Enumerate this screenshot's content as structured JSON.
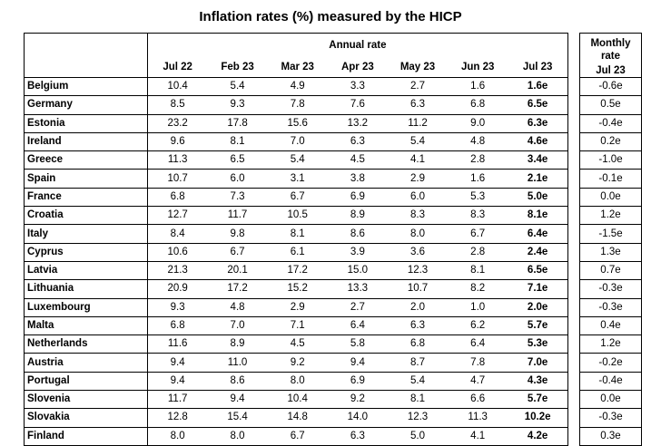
{
  "title": "Inflation rates (%) measured by the HICP",
  "annual_header": "Annual rate",
  "monthly_header_line1": "Monthly",
  "monthly_header_line2": "rate",
  "annual_columns": [
    "Jul 22",
    "Feb 23",
    "Mar 23",
    "Apr 23",
    "May 23",
    "Jun 23",
    "Jul 23"
  ],
  "monthly_column": "Jul 23",
  "rows": [
    {
      "country": "Belgium",
      "annual": [
        "10.4",
        "5.4",
        "4.9",
        "3.3",
        "2.7",
        "1.6",
        "1.6e"
      ],
      "monthly": "-0.6e"
    },
    {
      "country": "Germany",
      "annual": [
        "8.5",
        "9.3",
        "7.8",
        "7.6",
        "6.3",
        "6.8",
        "6.5e"
      ],
      "monthly": "0.5e"
    },
    {
      "country": "Estonia",
      "annual": [
        "23.2",
        "17.8",
        "15.6",
        "13.2",
        "11.2",
        "9.0",
        "6.3e"
      ],
      "monthly": "-0.4e"
    },
    {
      "country": "Ireland",
      "annual": [
        "9.6",
        "8.1",
        "7.0",
        "6.3",
        "5.4",
        "4.8",
        "4.6e"
      ],
      "monthly": "0.2e"
    },
    {
      "country": "Greece",
      "annual": [
        "11.3",
        "6.5",
        "5.4",
        "4.5",
        "4.1",
        "2.8",
        "3.4e"
      ],
      "monthly": "-1.0e"
    },
    {
      "country": "Spain",
      "annual": [
        "10.7",
        "6.0",
        "3.1",
        "3.8",
        "2.9",
        "1.6",
        "2.1e"
      ],
      "monthly": "-0.1e"
    },
    {
      "country": "France",
      "annual": [
        "6.8",
        "7.3",
        "6.7",
        "6.9",
        "6.0",
        "5.3",
        "5.0e"
      ],
      "monthly": "0.0e"
    },
    {
      "country": "Croatia",
      "annual": [
        "12.7",
        "11.7",
        "10.5",
        "8.9",
        "8.3",
        "8.3",
        "8.1e"
      ],
      "monthly": "1.2e"
    },
    {
      "country": "Italy",
      "annual": [
        "8.4",
        "9.8",
        "8.1",
        "8.6",
        "8.0",
        "6.7",
        "6.4e"
      ],
      "monthly": "-1.5e"
    },
    {
      "country": "Cyprus",
      "annual": [
        "10.6",
        "6.7",
        "6.1",
        "3.9",
        "3.6",
        "2.8",
        "2.4e"
      ],
      "monthly": "1.3e"
    },
    {
      "country": "Latvia",
      "annual": [
        "21.3",
        "20.1",
        "17.2",
        "15.0",
        "12.3",
        "8.1",
        "6.5e"
      ],
      "monthly": "0.7e"
    },
    {
      "country": "Lithuania",
      "annual": [
        "20.9",
        "17.2",
        "15.2",
        "13.3",
        "10.7",
        "8.2",
        "7.1e"
      ],
      "monthly": "-0.3e"
    },
    {
      "country": "Luxembourg",
      "annual": [
        "9.3",
        "4.8",
        "2.9",
        "2.7",
        "2.0",
        "1.0",
        "2.0e"
      ],
      "monthly": "-0.3e"
    },
    {
      "country": "Malta",
      "annual": [
        "6.8",
        "7.0",
        "7.1",
        "6.4",
        "6.3",
        "6.2",
        "5.7e"
      ],
      "monthly": "0.4e"
    },
    {
      "country": "Netherlands",
      "annual": [
        "11.6",
        "8.9",
        "4.5",
        "5.8",
        "6.8",
        "6.4",
        "5.3e"
      ],
      "monthly": "1.2e"
    },
    {
      "country": "Austria",
      "annual": [
        "9.4",
        "11.0",
        "9.2",
        "9.4",
        "8.7",
        "7.8",
        "7.0e"
      ],
      "monthly": "-0.2e"
    },
    {
      "country": "Portugal",
      "annual": [
        "9.4",
        "8.6",
        "8.0",
        "6.9",
        "5.4",
        "4.7",
        "4.3e"
      ],
      "monthly": "-0.4e"
    },
    {
      "country": "Slovenia",
      "annual": [
        "11.7",
        "9.4",
        "10.4",
        "9.2",
        "8.1",
        "6.6",
        "5.7e"
      ],
      "monthly": "0.0e"
    },
    {
      "country": "Slovakia",
      "annual": [
        "12.8",
        "15.4",
        "14.8",
        "14.0",
        "12.3",
        "11.3",
        "10.2e"
      ],
      "monthly": "-0.3e"
    },
    {
      "country": "Finland",
      "annual": [
        "8.0",
        "8.0",
        "6.7",
        "6.3",
        "5.0",
        "4.1",
        "4.2e"
      ],
      "monthly": "0.3e"
    }
  ]
}
